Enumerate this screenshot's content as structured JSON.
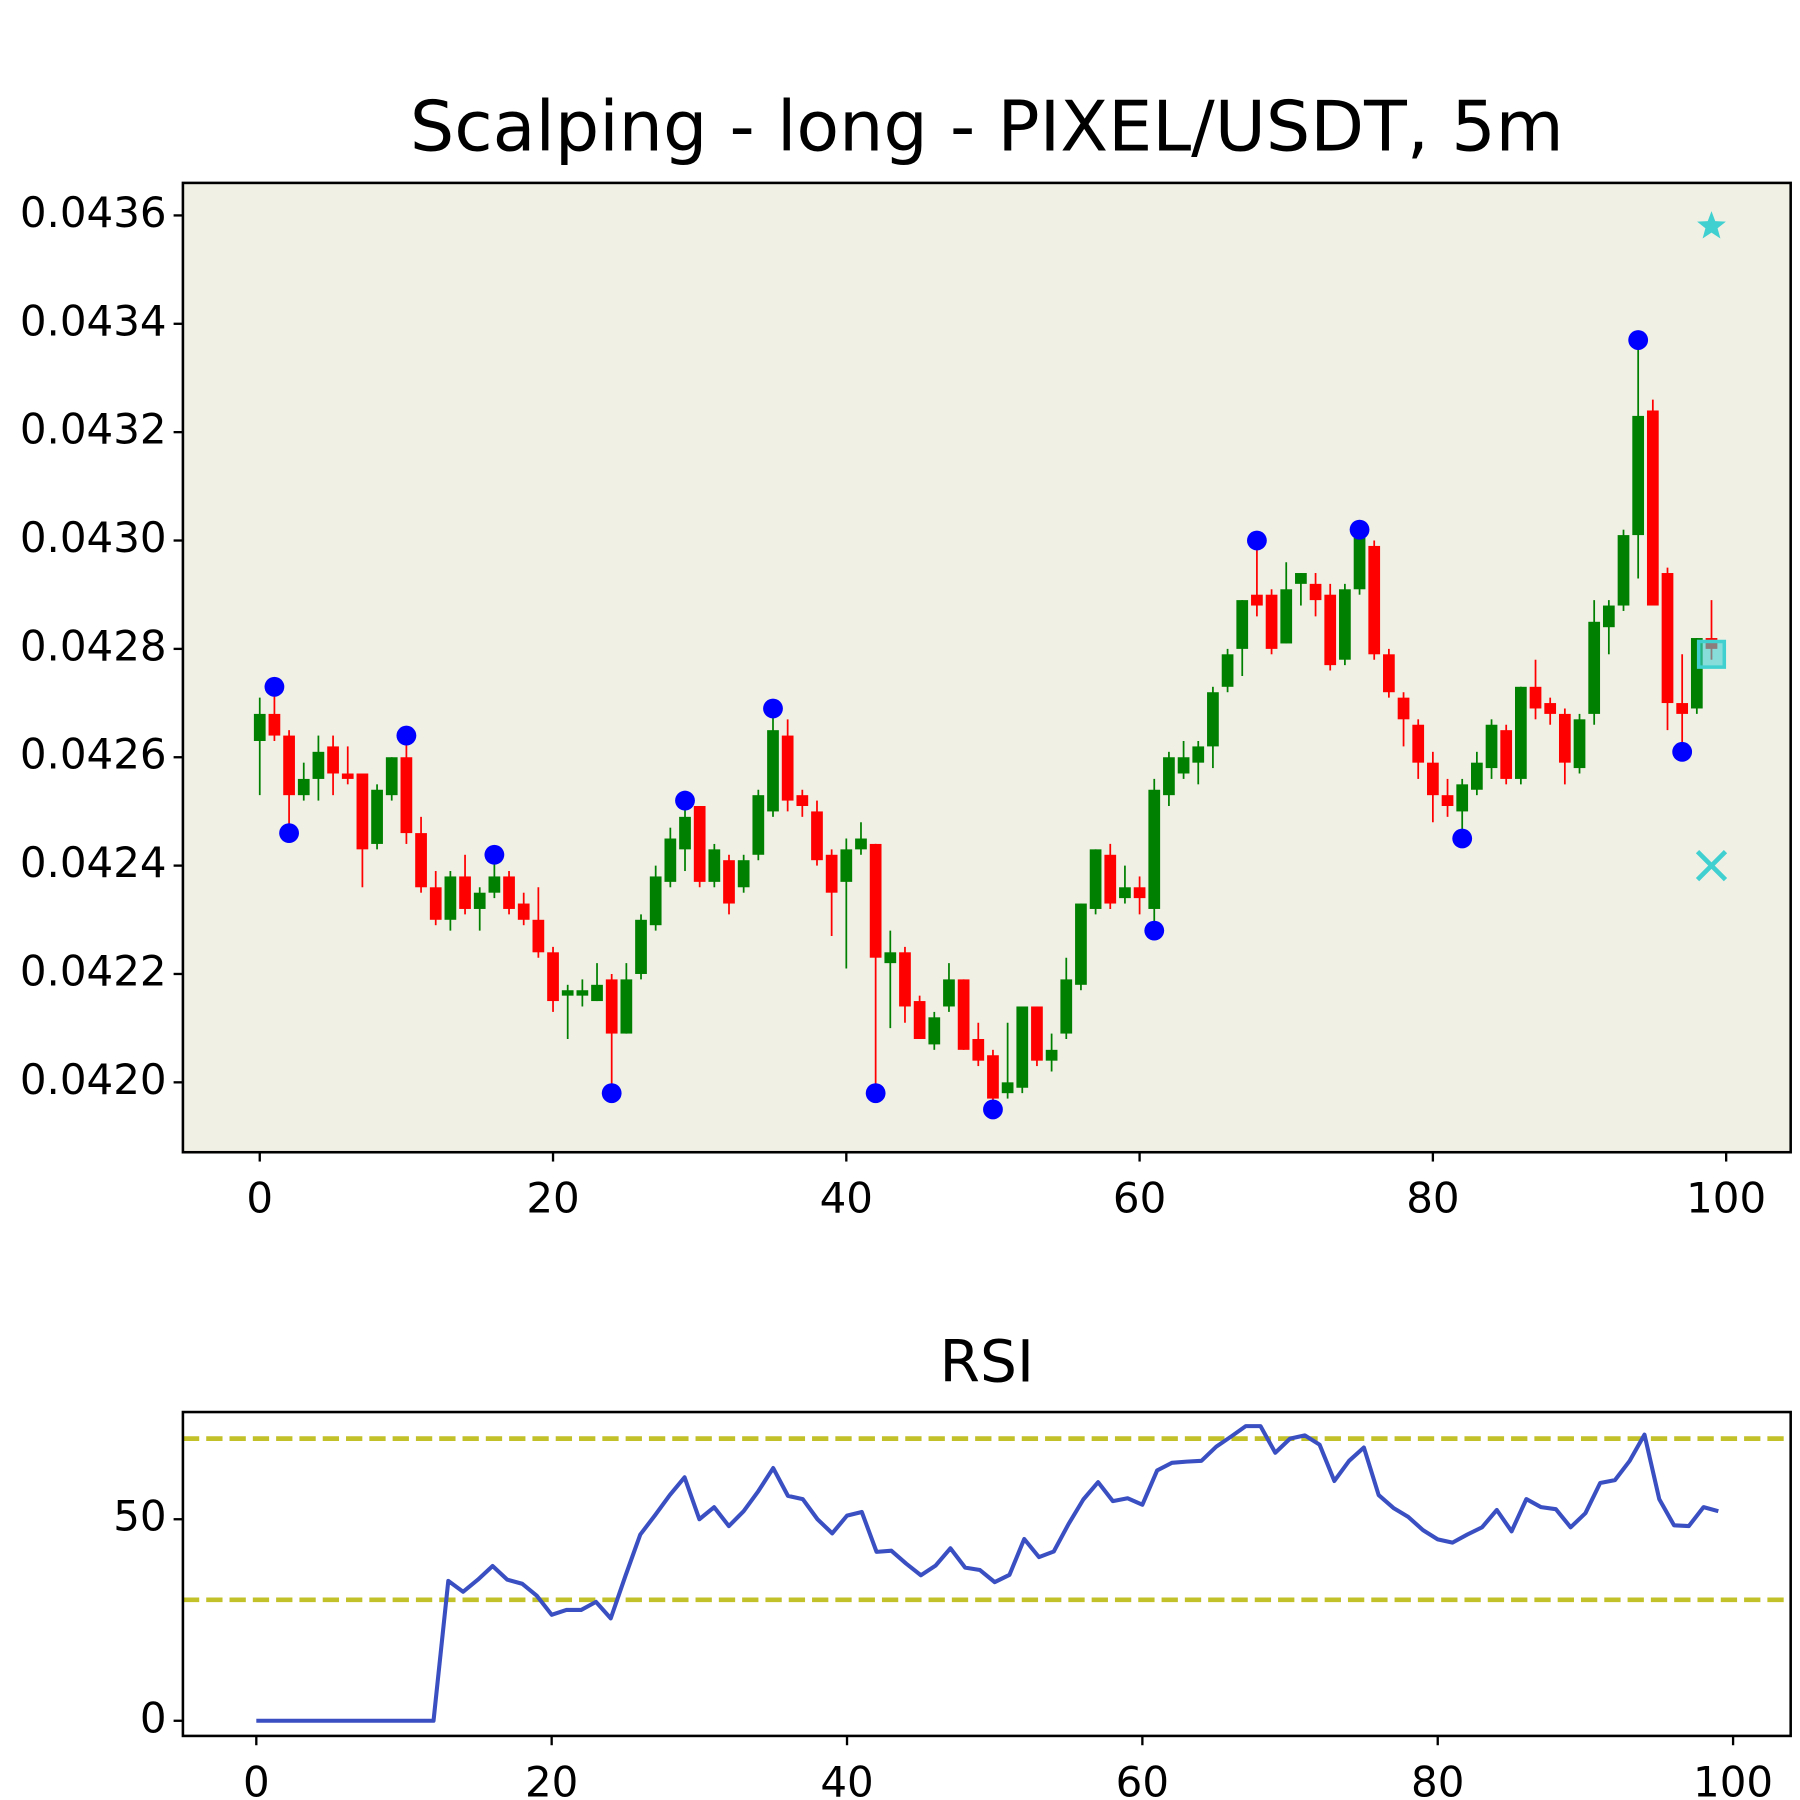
{
  "chart_data": [
    {
      "type": "candlestick",
      "title": "Scalping - long - PIXEL/USDT, 5m",
      "background": "#f1f0e5",
      "up_color": "#008000",
      "down_color": "#ff0000",
      "x": [
        0,
        1,
        2,
        3,
        4,
        5,
        6,
        7,
        8,
        9,
        10,
        11,
        12,
        13,
        14,
        15,
        16,
        17,
        18,
        19,
        20,
        21,
        22,
        23,
        24,
        25,
        26,
        27,
        28,
        29,
        30,
        31,
        32,
        33,
        34,
        35,
        36,
        37,
        38,
        39,
        40,
        41,
        42,
        43,
        44,
        45,
        46,
        47,
        48,
        49,
        50,
        51,
        52,
        53,
        54,
        55,
        56,
        57,
        58,
        59,
        60,
        61,
        62,
        63,
        64,
        65,
        66,
        67,
        68,
        69,
        70,
        71,
        72,
        73,
        74,
        75,
        76,
        77,
        78,
        79,
        80,
        81,
        82,
        83,
        84,
        85,
        86,
        87,
        88,
        89,
        90,
        91,
        92,
        93,
        94,
        95,
        96,
        97,
        98,
        99
      ],
      "open": [
        0.04263,
        0.04268,
        0.04264,
        0.04253,
        0.04256,
        0.04262,
        0.04257,
        0.04257,
        0.04244,
        0.04253,
        0.0426,
        0.04246,
        0.04236,
        0.0423,
        0.04238,
        0.04232,
        0.04235,
        0.04238,
        0.04233,
        0.0423,
        0.04224,
        0.04216,
        0.04216,
        0.04215,
        0.04219,
        0.04209,
        0.0422,
        0.04229,
        0.04237,
        0.04243,
        0.04251,
        0.04237,
        0.04241,
        0.04236,
        0.04242,
        0.0425,
        0.04264,
        0.04253,
        0.0425,
        0.04242,
        0.04237,
        0.04243,
        0.04244,
        0.04222,
        0.04224,
        0.04215,
        0.04207,
        0.04214,
        0.04219,
        0.04208,
        0.04205,
        0.04198,
        0.04199,
        0.04214,
        0.04204,
        0.04209,
        0.04218,
        0.04232,
        0.04242,
        0.04234,
        0.04236,
        0.04232,
        0.04253,
        0.04257,
        0.04259,
        0.04262,
        0.04273,
        0.0428,
        0.0429,
        0.0429,
        0.04281,
        0.04292,
        0.04292,
        0.0429,
        0.04278,
        0.04291,
        0.04299,
        0.04279,
        0.04271,
        0.04266,
        0.04259,
        0.04253,
        0.0425,
        0.04254,
        0.04258,
        0.04265,
        0.04256,
        0.04273,
        0.0427,
        0.04268,
        0.04258,
        0.04268,
        0.04284,
        0.04288,
        0.04301,
        0.04324,
        0.04294,
        0.0427,
        0.04269,
        0.04282
      ],
      "high": [
        0.04271,
        0.04273,
        0.04265,
        0.04259,
        0.04264,
        0.04264,
        0.04262,
        0.04257,
        0.04255,
        0.0426,
        0.04264,
        0.04249,
        0.04239,
        0.04239,
        0.04242,
        0.04236,
        0.04242,
        0.04239,
        0.04235,
        0.04236,
        0.04225,
        0.04218,
        0.04219,
        0.04222,
        0.0422,
        0.04222,
        0.04231,
        0.0424,
        0.04247,
        0.04252,
        0.04251,
        0.04244,
        0.04242,
        0.04242,
        0.04254,
        0.04269,
        0.04267,
        0.04254,
        0.04252,
        0.04243,
        0.04245,
        0.04248,
        0.04244,
        0.04228,
        0.04225,
        0.04216,
        0.04213,
        0.04222,
        0.04219,
        0.04211,
        0.04206,
        0.04211,
        0.04214,
        0.04214,
        0.04209,
        0.04223,
        0.04233,
        0.04243,
        0.04244,
        0.0424,
        0.04238,
        0.04256,
        0.04261,
        0.04263,
        0.04263,
        0.04273,
        0.0428,
        0.04289,
        0.04299,
        0.04291,
        0.04296,
        0.04294,
        0.04294,
        0.04292,
        0.04292,
        0.04302,
        0.043,
        0.0428,
        0.04272,
        0.04267,
        0.04261,
        0.04256,
        0.04256,
        0.04261,
        0.04267,
        0.04266,
        0.04273,
        0.04278,
        0.04271,
        0.04269,
        0.04268,
        0.04289,
        0.04289,
        0.04302,
        0.04336,
        0.04326,
        0.04295,
        0.04279,
        0.04282,
        0.04289
      ],
      "low": [
        0.04253,
        0.04263,
        0.04246,
        0.04252,
        0.04252,
        0.04253,
        0.04255,
        0.04236,
        0.04243,
        0.04252,
        0.04244,
        0.04235,
        0.04229,
        0.04228,
        0.04231,
        0.04228,
        0.04234,
        0.04231,
        0.04229,
        0.04223,
        0.04213,
        0.04208,
        0.04214,
        0.04215,
        0.04198,
        0.04209,
        0.04219,
        0.04228,
        0.04236,
        0.04239,
        0.04236,
        0.04236,
        0.04231,
        0.04235,
        0.04241,
        0.04249,
        0.0425,
        0.04249,
        0.0424,
        0.04227,
        0.04221,
        0.04242,
        0.04198,
        0.0421,
        0.04211,
        0.04208,
        0.04206,
        0.04213,
        0.04206,
        0.04203,
        0.04195,
        0.04197,
        0.04198,
        0.04203,
        0.04202,
        0.04208,
        0.04217,
        0.04231,
        0.04232,
        0.04233,
        0.04231,
        0.04228,
        0.04251,
        0.04256,
        0.04255,
        0.04258,
        0.04272,
        0.04275,
        0.04286,
        0.04279,
        0.04281,
        0.04288,
        0.04286,
        0.04276,
        0.04277,
        0.0429,
        0.04278,
        0.04271,
        0.04262,
        0.04256,
        0.04248,
        0.04249,
        0.04245,
        0.04253,
        0.04256,
        0.04255,
        0.04255,
        0.04267,
        0.04266,
        0.04255,
        0.04257,
        0.04266,
        0.04279,
        0.04287,
        0.04293,
        0.04288,
        0.04265,
        0.04262,
        0.04268,
        0.04278
      ],
      "close": [
        0.04268,
        0.04264,
        0.04253,
        0.04256,
        0.04261,
        0.04257,
        0.04256,
        0.04243,
        0.04254,
        0.0426,
        0.04246,
        0.04236,
        0.0423,
        0.04238,
        0.04232,
        0.04235,
        0.04238,
        0.04232,
        0.0423,
        0.04224,
        0.04215,
        0.04217,
        0.04217,
        0.04218,
        0.04209,
        0.04219,
        0.0423,
        0.04238,
        0.04245,
        0.04249,
        0.04237,
        0.04243,
        0.04233,
        0.04241,
        0.04253,
        0.04265,
        0.04252,
        0.04251,
        0.04241,
        0.04235,
        0.04243,
        0.04245,
        0.04223,
        0.04224,
        0.04214,
        0.04208,
        0.04212,
        0.04219,
        0.04206,
        0.04204,
        0.04197,
        0.042,
        0.04214,
        0.04204,
        0.04206,
        0.04219,
        0.04233,
        0.04243,
        0.04233,
        0.04236,
        0.04234,
        0.04254,
        0.0426,
        0.0426,
        0.04262,
        0.04272,
        0.04279,
        0.04289,
        0.04288,
        0.0428,
        0.04291,
        0.04294,
        0.04289,
        0.04277,
        0.04291,
        0.04301,
        0.04279,
        0.04272,
        0.04267,
        0.04259,
        0.04253,
        0.04251,
        0.04255,
        0.04259,
        0.04266,
        0.04256,
        0.04273,
        0.04269,
        0.04268,
        0.04259,
        0.04267,
        0.04285,
        0.04288,
        0.04301,
        0.04323,
        0.04288,
        0.0427,
        0.04268,
        0.04282,
        0.0428
      ],
      "markers": [
        {
          "marker": "circle",
          "color": "#0000ff",
          "x": [
            1,
            2,
            10,
            16,
            24,
            29,
            35,
            42,
            50,
            61,
            68,
            75,
            82,
            94,
            97
          ],
          "y": [
            0.04273,
            0.04246,
            0.04264,
            0.04242,
            0.04198,
            0.04252,
            0.04269,
            0.04198,
            0.04195,
            0.04228,
            0.043,
            0.04302,
            0.04245,
            0.04337,
            0.04261
          ]
        },
        {
          "marker": "star",
          "color": "#40d0d0",
          "x": [
            99
          ],
          "y": [
            0.04358
          ]
        },
        {
          "marker": "square",
          "color": "#40d0d0",
          "x": [
            99
          ],
          "y": [
            0.04279
          ]
        },
        {
          "marker": "x",
          "color": "#40d0d0",
          "x": [
            99
          ],
          "y": [
            0.0424
          ]
        }
      ],
      "xlim": [
        -5.24,
        104.4
      ],
      "ylim": [
        0.041871,
        0.04366
      ],
      "xticks": [
        0,
        20,
        40,
        60,
        80,
        100
      ],
      "yticks": [
        {
          "value": 0.042,
          "label": "0.0420"
        },
        {
          "value": 0.0422,
          "label": "0.0422"
        },
        {
          "value": 0.0424,
          "label": "0.0424"
        },
        {
          "value": 0.0426,
          "label": "0.0426"
        },
        {
          "value": 0.0428,
          "label": "0.0428"
        },
        {
          "value": 0.043,
          "label": "0.0430"
        },
        {
          "value": 0.0432,
          "label": "0.0432"
        },
        {
          "value": 0.0434,
          "label": "0.0434"
        },
        {
          "value": 0.0436,
          "label": "0.0436"
        }
      ]
    },
    {
      "type": "line",
      "title": "RSI",
      "color": "#3a4fc1",
      "x": [
        0,
        1,
        2,
        3,
        4,
        5,
        6,
        7,
        8,
        9,
        10,
        11,
        12,
        13,
        14,
        15,
        16,
        17,
        18,
        19,
        20,
        21,
        22,
        23,
        24,
        25,
        26,
        27,
        28,
        29,
        30,
        31,
        32,
        33,
        34,
        35,
        36,
        37,
        38,
        39,
        40,
        41,
        42,
        43,
        44,
        45,
        46,
        47,
        48,
        49,
        50,
        51,
        52,
        53,
        54,
        55,
        56,
        57,
        58,
        59,
        60,
        61,
        62,
        63,
        64,
        65,
        66,
        67,
        68,
        69,
        70,
        71,
        72,
        73,
        74,
        75,
        76,
        77,
        78,
        79,
        80,
        81,
        82,
        83,
        84,
        85,
        86,
        87,
        88,
        89,
        90,
        91,
        92,
        93,
        94,
        95,
        96,
        97,
        98,
        99
      ],
      "values": [
        0,
        0,
        0,
        0,
        0,
        0,
        0,
        0,
        0,
        0,
        0,
        0,
        0,
        34.7,
        32,
        35,
        38.4,
        35,
        34,
        31,
        26.3,
        27.5,
        27.5,
        29.5,
        25.4,
        36,
        46.2,
        51,
        56,
        60.4,
        50,
        53,
        48.3,
        52,
        57,
        62.7,
        55.8,
        55,
        50,
        46.5,
        50.9,
        51.8,
        41.9,
        42.2,
        39,
        36.1,
        38.5,
        42.8,
        38,
        37.4,
        34.4,
        36.2,
        45.1,
        40.6,
        42,
        48.8,
        54.9,
        59.2,
        54.5,
        55.2,
        53.6,
        62.1,
        64,
        64.3,
        64.5,
        68,
        70.5,
        73.1,
        73.1,
        66.5,
        70,
        70.8,
        68.5,
        59.5,
        64.5,
        67.8,
        56,
        52.8,
        50.6,
        47.3,
        45,
        44.2,
        46.2,
        48,
        52.3,
        47,
        55,
        53,
        52.5,
        48,
        51.5,
        59,
        59.7,
        64.5,
        71,
        55,
        48.5,
        48.3,
        53,
        52
      ],
      "hlines": [
        {
          "value": 70,
          "color": "#c2c12a",
          "dashed": true
        },
        {
          "value": 30,
          "color": "#c2c12a",
          "dashed": true
        }
      ],
      "xlim": [
        -4.97,
        103.9
      ],
      "ylim": [
        -3.76,
        76.6
      ],
      "xticks": [
        0,
        20,
        40,
        60,
        80,
        100
      ],
      "yticks": [
        0,
        50
      ]
    }
  ]
}
